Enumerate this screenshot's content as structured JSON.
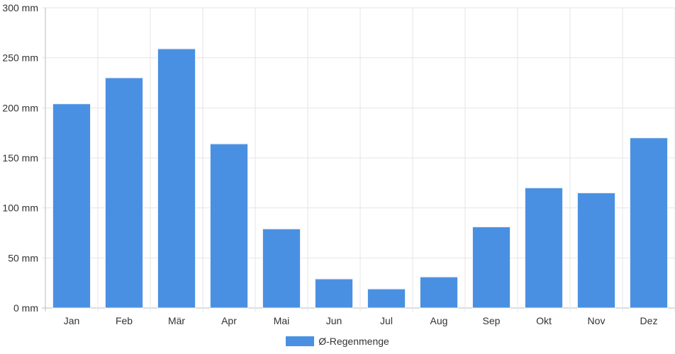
{
  "chart_data": {
    "type": "bar",
    "categories": [
      "Jan",
      "Feb",
      "Mär",
      "Apr",
      "Mai",
      "Jun",
      "Jul",
      "Aug",
      "Sep",
      "Okt",
      "Nov",
      "Dez"
    ],
    "series": [
      {
        "name": "Ø-Regenmenge",
        "values": [
          204,
          230,
          259,
          164,
          79,
          29,
          19,
          31,
          81,
          120,
          115,
          170
        ]
      }
    ],
    "y_ticks": [
      "0 mm",
      "50 mm",
      "100 mm",
      "150 mm",
      "200 mm",
      "250 mm",
      "300 mm"
    ],
    "ylim": [
      0,
      300
    ],
    "y_unit": "mm",
    "grid": true,
    "legend_position": "bottom-center",
    "colors": {
      "bar": "#4a90e2",
      "bar_border": "#e8eef7",
      "grid": "#e6e6e6",
      "axis": "#bbbbbb"
    }
  }
}
